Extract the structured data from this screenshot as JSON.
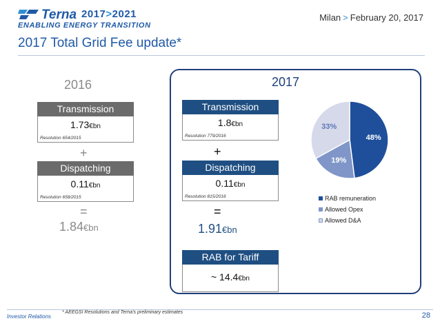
{
  "header": {
    "logo_name": "Terna",
    "logo_years_a": "2017",
    "logo_years_sep": ">",
    "logo_years_b": "2021",
    "logo_subtitle": "ENABLING ENERGY TRANSITION",
    "location": "Milan",
    "separator": ">",
    "date": "February 20, 2017"
  },
  "title": "2017 Total Grid Fee update*",
  "col2016": {
    "year": "2016",
    "transmission": {
      "label": "Transmission",
      "value": "1.73",
      "unit": "€bn",
      "resolution": "Resolution 654/2015"
    },
    "plus": "+",
    "dispatching": {
      "label": "Dispatching",
      "value": "0.11",
      "unit": "€bn",
      "resolution": "Resolution 658/2015"
    },
    "equals": "=",
    "total_value": "1.84",
    "total_unit": "€bn"
  },
  "col2017": {
    "year": "2017",
    "transmission": {
      "label": "Transmission",
      "value": "1.8",
      "unit": "€bn",
      "resolution": "Resolution 779/2016"
    },
    "plus": "+",
    "dispatching": {
      "label": "Dispatching",
      "value": "0.11",
      "unit": "€bn",
      "resolution": "Resolution 815/2016"
    },
    "equals": "=",
    "total_value": "1.91",
    "total_unit": "€bn",
    "rab": {
      "label": "RAB for Tariff",
      "value": "~ 14.4",
      "unit": "€bn"
    }
  },
  "chart_data": {
    "type": "pie",
    "slices": [
      {
        "name": "RAB remuneration",
        "value": 48,
        "label": "48%",
        "color": "#1f4f9a"
      },
      {
        "name": "Allowed Opex",
        "value": 19,
        "label": "19%",
        "color": "#8096c8"
      },
      {
        "name": "Allowed D&A",
        "value": 33,
        "label": "33%",
        "color": "#d5d9ea"
      }
    ],
    "legend_position": "bottom"
  },
  "footer": {
    "section": "Investor Relations",
    "footnote": "* AEEGSI Resolutions and Terna's preliminary estimates",
    "page": "28"
  },
  "colors": {
    "brand_blue": "#1f5aa6",
    "dark_blue": "#1f4f82",
    "gray_head": "#6b6b6b"
  }
}
